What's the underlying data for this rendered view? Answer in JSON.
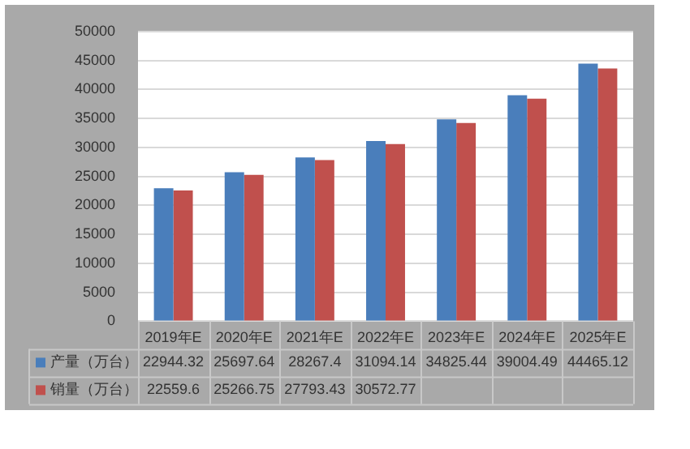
{
  "chart_data": {
    "type": "bar",
    "categories": [
      "2019年E",
      "2020年E",
      "2021年E",
      "2022年E",
      "2023年E",
      "2024年E",
      "2025年E"
    ],
    "series": [
      {
        "name": "产量（万台）",
        "color": "#4a7ebb",
        "values": [
          22944.32,
          25697.64,
          28267.4,
          31094.14,
          34825.44,
          39004.49,
          44465.12
        ],
        "value_labels": [
          "22944.32",
          "25697.64",
          "28267.4",
          "31094.14",
          "34825.44",
          "39004.49",
          "44465.12"
        ]
      },
      {
        "name": "销量（万台）",
        "color": "#c0504d",
        "values": [
          22559.6,
          25266.75,
          27793.43,
          30572.77,
          34200,
          38400,
          43600
        ],
        "value_labels": [
          "22559.6",
          "25266.75",
          "27793.43",
          "30572.77",
          null,
          null,
          null
        ]
      }
    ],
    "ylim": [
      0,
      50000
    ],
    "yticks": [
      0,
      5000,
      10000,
      15000,
      20000,
      25000,
      30000,
      35000,
      40000,
      45000,
      50000
    ],
    "grid": "y",
    "legend": "bottom left"
  }
}
